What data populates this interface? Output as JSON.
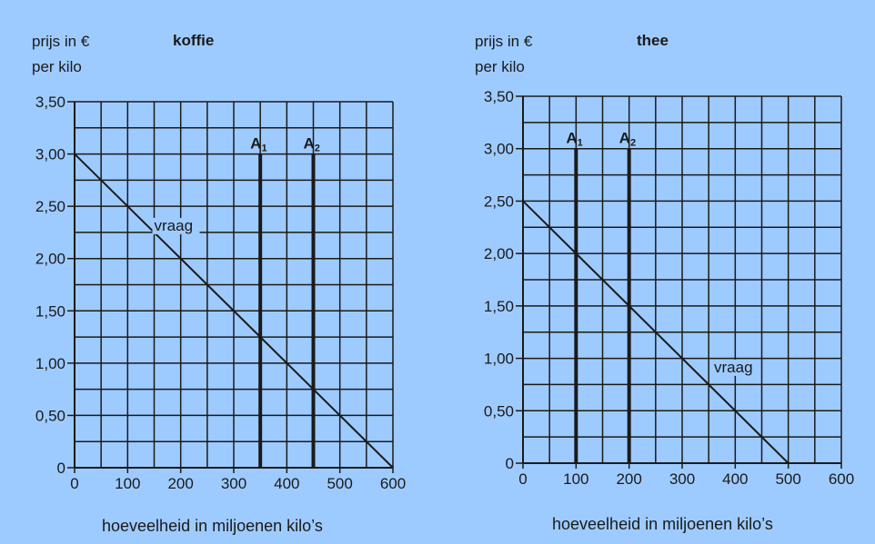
{
  "colors": {
    "background": "#9ecbff",
    "ink": "#1a1a1a"
  },
  "chart_data": [
    {
      "type": "line",
      "title": "koffie",
      "ylabel": "prijs in €",
      "ylabel2": "per kilo",
      "xlabel": "hoeveelheid in miljoenen kilo’s",
      "xlim": [
        0,
        600
      ],
      "ylim": [
        0,
        3.5
      ],
      "x_ticks": [
        0,
        100,
        200,
        300,
        400,
        500,
        600
      ],
      "x_tick_labels": [
        "0",
        "100",
        "200",
        "300",
        "400",
        "500",
        "600"
      ],
      "y_ticks": [
        0,
        0.5,
        1.0,
        1.5,
        2.0,
        2.5,
        3.0,
        3.5
      ],
      "y_tick_labels": [
        "0",
        "0,50",
        "1,00",
        "1,50",
        "2,00",
        "2,50",
        "3,00",
        "3,50"
      ],
      "grid": true,
      "grid_x_step": 50,
      "grid_y_step": 0.25,
      "series": [
        {
          "name": "vraag",
          "x": [
            0,
            600
          ],
          "y": [
            3.0,
            0
          ]
        }
      ],
      "vlines": [
        {
          "label": "A",
          "sub": "1",
          "x": 350,
          "ymax": 3.0
        },
        {
          "label": "A",
          "sub": "2",
          "x": 450,
          "ymax": 3.0
        }
      ],
      "annotations": [
        {
          "text": "vraag",
          "x": 150,
          "y": 2.25
        }
      ]
    },
    {
      "type": "line",
      "title": "thee",
      "ylabel": "prijs in €",
      "ylabel2": "per kilo",
      "xlabel": "hoeveelheid in miljoenen kilo’s",
      "xlim": [
        0,
        600
      ],
      "ylim": [
        0,
        3.5
      ],
      "x_ticks": [
        0,
        100,
        200,
        300,
        400,
        500,
        600
      ],
      "x_tick_labels": [
        "0",
        "100",
        "200",
        "300",
        "400",
        "500",
        "600"
      ],
      "y_ticks": [
        0,
        0.5,
        1.0,
        1.5,
        2.0,
        2.5,
        3.0,
        3.5
      ],
      "y_tick_labels": [
        "0",
        "0,50",
        "1,00",
        "1,50",
        "2,00",
        "2,50",
        "3,00",
        "3,50"
      ],
      "grid": true,
      "grid_x_step": 50,
      "grid_y_step": 0.25,
      "series": [
        {
          "name": "vraag",
          "x": [
            0,
            500
          ],
          "y": [
            2.5,
            0
          ]
        }
      ],
      "vlines": [
        {
          "label": "A",
          "sub": "1",
          "x": 100,
          "ymax": 3.0
        },
        {
          "label": "A",
          "sub": "2",
          "x": 200,
          "ymax": 3.0
        }
      ],
      "annotations": [
        {
          "text": "vraag",
          "x": 360,
          "y": 0.85
        }
      ]
    }
  ]
}
